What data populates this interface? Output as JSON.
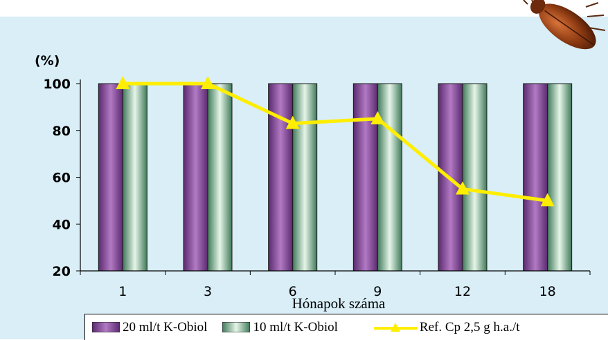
{
  "chart_data": {
    "type": "bar",
    "ylabel": "(%)",
    "xlabel": "Hónapok száma",
    "categories": [
      "1",
      "3",
      "6",
      "9",
      "12",
      "18"
    ],
    "ylim": [
      20,
      100
    ],
    "yticks": [
      20,
      40,
      60,
      80,
      100
    ],
    "series": [
      {
        "name": "20 ml/t K-Obiol",
        "type": "bar",
        "color": "#7a3f8f",
        "values": [
          100,
          100,
          100,
          100,
          100,
          100
        ]
      },
      {
        "name": "10 ml/t K-Obiol",
        "type": "bar",
        "color": "#5e9e7a",
        "values": [
          100,
          100,
          100,
          100,
          100,
          100
        ]
      },
      {
        "name": "Ref. Cp 2,5 g h.a./t",
        "type": "line",
        "marker": "triangle",
        "color": "#ffee00",
        "values": [
          100,
          100,
          83,
          85,
          55,
          50
        ]
      }
    ],
    "grid": false,
    "legend_position": "bottom"
  },
  "decor": {
    "beetle_icon": "beetle-icon",
    "background_color": "#d9eef7"
  }
}
